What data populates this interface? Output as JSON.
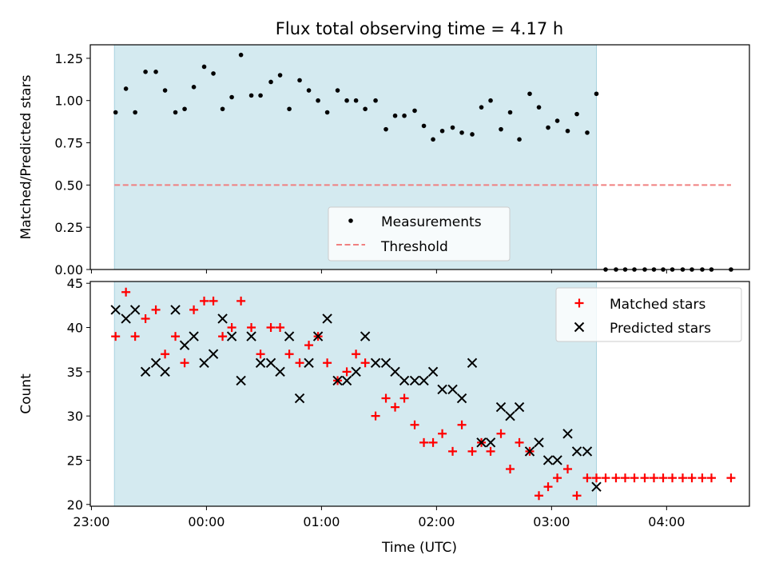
{
  "figure": {
    "title": "Flux total observing time = 4.17 h",
    "xlabel": "Time (UTC)",
    "x_ticks": [
      "23:00",
      "00:00",
      "01:00",
      "02:00",
      "03:00",
      "04:00"
    ]
  },
  "colors": {
    "shade": "#d4eaf0",
    "shade_edge": "#a9d3df",
    "measurements": "#000000",
    "threshold": "#f08080",
    "matched": "#ff0000",
    "predicted": "#000000"
  },
  "chart_data": [
    {
      "type": "scatter",
      "title": "Flux total observing time = 4.17 h",
      "ylabel": "Matched/Predicted stars",
      "xlabel": "",
      "x_unit": "hours after 23:00 UTC",
      "xlim": [
        -0.01,
        5.72
      ],
      "ylim": [
        0,
        1.33
      ],
      "yticks": [
        0,
        0.25,
        0.5,
        0.75,
        1.0,
        1.25
      ],
      "ytick_labels": [
        "0.00",
        "0.25",
        "0.50",
        "0.75",
        "1.00",
        "1.25"
      ],
      "shaded_region": [
        0.2,
        4.39
      ],
      "grid": false,
      "legend": {
        "location": "lower center",
        "entries": [
          "Measurements",
          "Threshold"
        ]
      },
      "series": [
        {
          "name": "Measurements",
          "marker": "dot",
          "x": [
            0.21,
            0.3,
            0.38,
            0.47,
            0.56,
            0.64,
            0.73,
            0.81,
            0.89,
            0.98,
            1.06,
            1.14,
            1.22,
            1.3,
            1.39,
            1.47,
            1.56,
            1.64,
            1.72,
            1.81,
            1.89,
            1.97,
            2.05,
            2.14,
            2.22,
            2.3,
            2.38,
            2.47,
            2.56,
            2.64,
            2.72,
            2.81,
            2.89,
            2.97,
            3.05,
            3.14,
            3.22,
            3.31,
            3.39,
            3.47,
            3.56,
            3.64,
            3.72,
            3.81,
            3.89,
            3.97,
            4.05,
            4.14,
            4.22,
            4.31,
            4.39,
            4.47,
            4.56,
            4.64,
            4.72,
            4.81,
            4.89,
            4.97,
            5.05,
            5.14,
            5.22,
            5.31,
            5.39,
            5.56
          ],
          "y": [
            0.93,
            1.07,
            0.93,
            1.17,
            1.17,
            1.06,
            0.93,
            0.95,
            1.08,
            1.2,
            1.16,
            0.95,
            1.02,
            1.27,
            1.03,
            1.03,
            1.11,
            1.15,
            0.95,
            1.12,
            1.06,
            1.0,
            0.93,
            1.06,
            1.0,
            1.0,
            0.95,
            1.0,
            0.83,
            0.91,
            0.91,
            0.94,
            0.85,
            0.77,
            0.82,
            0.84,
            0.81,
            0.8,
            0.96,
            1.0,
            0.83,
            0.93,
            0.77,
            1.04,
            0.96,
            0.84,
            0.88,
            0.82,
            0.92,
            0.81,
            1.04,
            0,
            0,
            0,
            0,
            0,
            0,
            0,
            0,
            0,
            0,
            0,
            0,
            0
          ]
        },
        {
          "name": "Threshold",
          "style": "dashed",
          "x": [
            0.2,
            5.56
          ],
          "y": [
            0.5,
            0.5
          ]
        }
      ]
    },
    {
      "type": "scatter",
      "ylabel": "Count",
      "xlabel": "Time (UTC)",
      "x_unit": "hours after 23:00 UTC",
      "xlim": [
        -0.01,
        5.72
      ],
      "ylim": [
        19.8,
        45.2
      ],
      "yticks": [
        20,
        25,
        30,
        35,
        40,
        45
      ],
      "ytick_labels": [
        "20",
        "25",
        "30",
        "35",
        "40",
        "45"
      ],
      "xticks": [
        0,
        1,
        2,
        3,
        4,
        5
      ],
      "xtick_labels": [
        "23:00",
        "00:00",
        "01:00",
        "02:00",
        "03:00",
        "04:00"
      ],
      "shaded_region": [
        0.2,
        4.39
      ],
      "grid": false,
      "legend": {
        "location": "upper right",
        "entries": [
          "Matched stars",
          "Predicted stars"
        ]
      },
      "series": [
        {
          "name": "Matched stars",
          "marker": "plus",
          "x": [
            0.21,
            0.3,
            0.38,
            0.47,
            0.56,
            0.64,
            0.73,
            0.81,
            0.89,
            0.98,
            1.06,
            1.14,
            1.22,
            1.3,
            1.39,
            1.47,
            1.56,
            1.64,
            1.72,
            1.81,
            1.89,
            1.97,
            2.05,
            2.14,
            2.22,
            2.3,
            2.38,
            2.47,
            2.56,
            2.64,
            2.72,
            2.81,
            2.89,
            2.97,
            3.05,
            3.14,
            3.22,
            3.31,
            3.39,
            3.47,
            3.56,
            3.64,
            3.72,
            3.81,
            3.89,
            3.97,
            4.05,
            4.14,
            4.22,
            4.31,
            4.39,
            4.47,
            4.56,
            4.64,
            4.72,
            4.81,
            4.89,
            4.97,
            5.05,
            5.14,
            5.22,
            5.31,
            5.39,
            5.56
          ],
          "y": [
            39,
            44,
            39,
            41,
            42,
            37,
            39,
            36,
            42,
            43,
            43,
            39,
            40,
            43,
            40,
            37,
            40,
            40,
            37,
            36,
            38,
            39,
            36,
            34,
            35,
            37,
            36,
            30,
            32,
            31,
            32,
            29,
            27,
            27,
            28,
            26,
            29,
            26,
            27,
            26,
            28,
            24,
            27,
            26,
            21,
            22,
            23,
            24,
            21,
            23,
            23,
            23,
            23,
            23,
            23,
            23,
            23,
            23,
            23,
            23,
            23,
            23,
            23,
            23
          ]
        },
        {
          "name": "Predicted stars",
          "marker": "x",
          "x": [
            0.21,
            0.3,
            0.38,
            0.47,
            0.56,
            0.64,
            0.73,
            0.81,
            0.89,
            0.98,
            1.06,
            1.14,
            1.22,
            1.3,
            1.39,
            1.47,
            1.56,
            1.64,
            1.72,
            1.81,
            1.89,
            1.97,
            2.05,
            2.14,
            2.22,
            2.3,
            2.38,
            2.47,
            2.56,
            2.64,
            2.72,
            2.81,
            2.89,
            2.97,
            3.05,
            3.14,
            3.22,
            3.31,
            3.39,
            3.47,
            3.56,
            3.64,
            3.72,
            3.81,
            3.89,
            3.97,
            4.05,
            4.14,
            4.22,
            4.31,
            4.39
          ],
          "y": [
            42,
            41,
            42,
            35,
            36,
            35,
            42,
            38,
            39,
            36,
            37,
            41,
            39,
            34,
            39,
            36,
            36,
            35,
            39,
            32,
            36,
            39,
            41,
            34,
            34,
            35,
            39,
            36,
            36,
            35,
            34,
            34,
            34,
            35,
            33,
            33,
            32,
            36,
            27,
            27,
            31,
            30,
            31,
            26,
            27,
            25,
            25,
            28,
            26,
            26,
            22
          ]
        }
      ]
    }
  ]
}
